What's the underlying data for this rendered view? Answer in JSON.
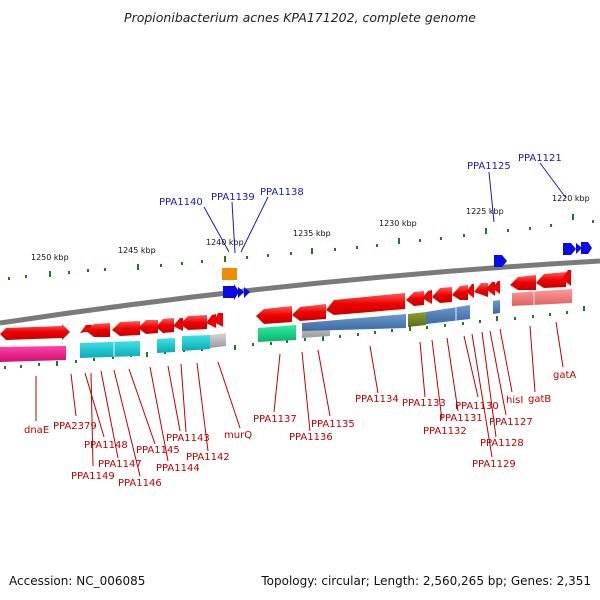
{
  "title": "Propionibacterium acnes KPA171202, complete genome",
  "footer": {
    "accession": "Accession: NC_006085",
    "topology": "Topology: circular; Length: 2,560,265 bp; Genes: 2,351"
  },
  "scale": {
    "ticks": [
      "1250 kbp",
      "1245 kbp",
      "1240 kbp",
      "1235 kbp",
      "1230 kbp",
      "1225 kbp",
      "1220 kbp"
    ]
  },
  "top_labels": [
    "PPA1140",
    "PPA1139",
    "PPA1138",
    "PPA1125",
    "PPA1121"
  ],
  "bottom_labels": [
    "dnaE",
    "PPA2379",
    "PPA1148",
    "PPA1149",
    "PPA1147",
    "PPA1146",
    "PPA1145",
    "PPA1144",
    "PPA1143",
    "PPA1142",
    "murQ",
    "PPA1137",
    "PPA1136",
    "PPA1135",
    "PPA1134",
    "PPA1133",
    "PPA1132",
    "PPA1131",
    "PPA1130",
    "PPA1129",
    "PPA1128",
    "PPA1127",
    "hisI",
    "gatB",
    "gatA"
  ],
  "colors": {
    "backbone": "#808080",
    "gene_red": "#ee0000",
    "gene_blue": "#0a0ae6",
    "gene_orange": "#f08c00",
    "tick": "#1e7a1e",
    "label_blue": "#1a1ab4",
    "label_red": "#c00000"
  }
}
